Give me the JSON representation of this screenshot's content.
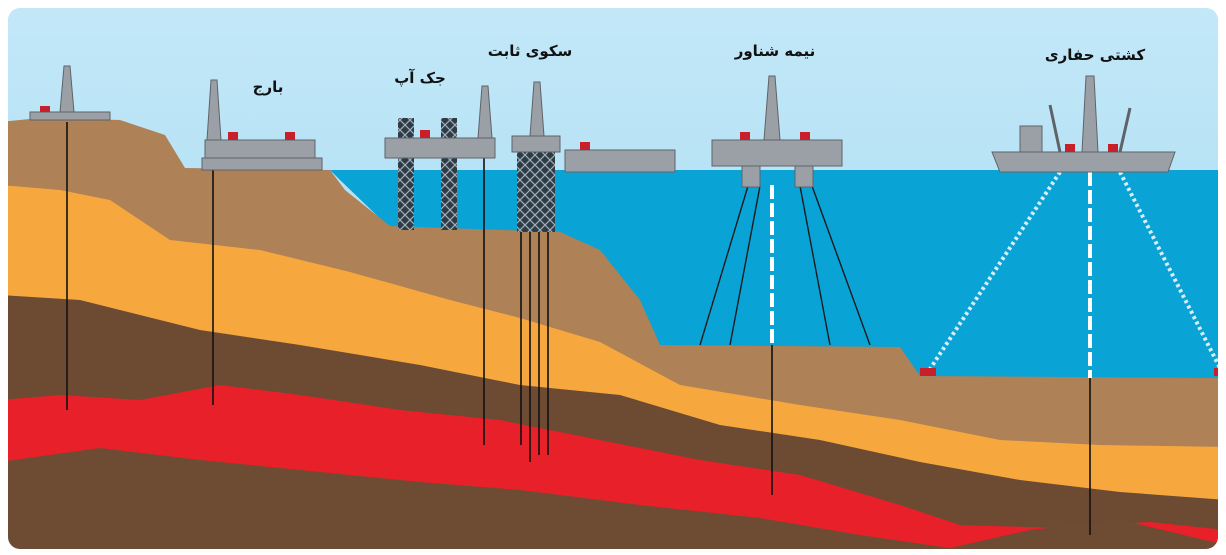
{
  "rigs": [
    "بارج",
    "جک آپ",
    "سکوی ثابت",
    "نیمه شناور",
    "کشتی حفاری"
  ]
}
